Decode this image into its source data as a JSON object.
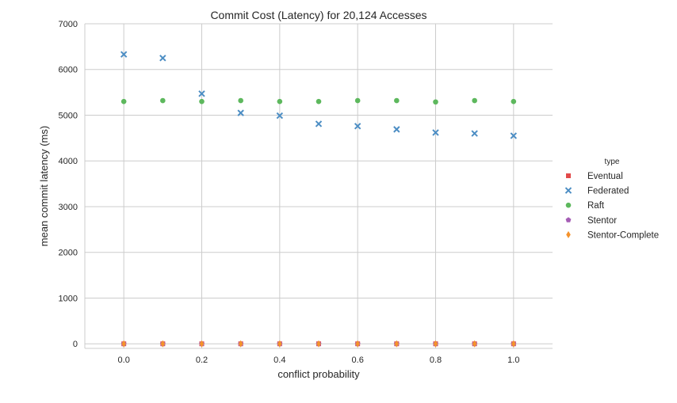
{
  "chart_data": {
    "type": "scatter",
    "title": "Commit Cost (Latency) for 20,124 Accesses",
    "xlabel": "conflict probability",
    "ylabel": "mean commit latency (ms)",
    "xlim": [
      -0.1,
      1.1
    ],
    "ylim": [
      -100,
      7000
    ],
    "xticks": [
      0.0,
      0.2,
      0.4,
      0.6,
      0.8,
      1.0
    ],
    "xtick_labels": [
      "0.0",
      "0.2",
      "0.4",
      "0.6",
      "0.8",
      "1.0"
    ],
    "yticks": [
      0,
      1000,
      2000,
      3000,
      4000,
      5000,
      6000,
      7000
    ],
    "ytick_labels": [
      "0",
      "1000",
      "2000",
      "3000",
      "4000",
      "5000",
      "6000",
      "7000"
    ],
    "grid": true,
    "legend": {
      "title": "type",
      "placement": "right"
    },
    "x": [
      0.0,
      0.1,
      0.2,
      0.3,
      0.4,
      0.5,
      0.6,
      0.7,
      0.8,
      0.9,
      1.0
    ],
    "series": [
      {
        "name": "Eventual",
        "marker": "square",
        "color": "#e24a4a",
        "values": [
          0,
          0,
          0,
          0,
          0,
          0,
          0,
          0,
          0,
          0,
          0
        ]
      },
      {
        "name": "Federated",
        "marker": "x",
        "color": "#4d8ec4",
        "values": [
          6330,
          6250,
          5470,
          5050,
          4990,
          4810,
          4760,
          4690,
          4620,
          4600,
          4550
        ]
      },
      {
        "name": "Raft",
        "marker": "circle",
        "color": "#5db85d",
        "values": [
          5300,
          5320,
          5300,
          5320,
          5300,
          5300,
          5320,
          5320,
          5290,
          5320,
          5300
        ]
      },
      {
        "name": "Stentor",
        "marker": "pentagon",
        "color": "#a55db5",
        "values": [
          0,
          0,
          0,
          0,
          0,
          0,
          0,
          0,
          0,
          0,
          0
        ]
      },
      {
        "name": "Stentor-Complete",
        "marker": "diamond",
        "color": "#f5922b",
        "values": [
          0,
          0,
          0,
          0,
          0,
          0,
          0,
          0,
          0,
          0,
          0
        ]
      }
    ]
  }
}
